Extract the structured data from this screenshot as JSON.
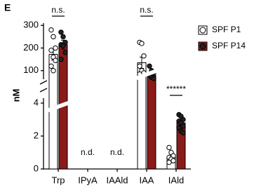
{
  "panel_label": "E",
  "chart_data": {
    "type": "bar",
    "y_label": "nM",
    "categories": [
      "Trp",
      "IPyA",
      "IAAld",
      "IAA",
      "IAld"
    ],
    "y_segments": [
      {
        "ylim": [
          0,
          4.3
        ],
        "yticks": [
          0,
          2,
          4
        ]
      },
      {
        "ylim": [
          62,
          310
        ],
        "yticks": [
          100,
          200,
          300
        ]
      }
    ],
    "series": [
      {
        "name": "SPF P1",
        "color": "#ffffff",
        "values": [
          172,
          null,
          null,
          135,
          0.7
        ],
        "errors": [
          25,
          null,
          null,
          25,
          0.1
        ],
        "points": [
          [
            280,
            250,
            200,
            190,
            160,
            145,
            120,
            100
          ],
          [],
          [],
          [
            225,
            220,
            165,
            120,
            100,
            90,
            85
          ],
          [
            1.3,
            1.0,
            0.8,
            0.7,
            0.6,
            0.5,
            0.4
          ]
        ]
      },
      {
        "name": "SPF P14",
        "color": "#8b1a1a",
        "values": [
          215,
          null,
          null,
          80,
          2.8
        ],
        "errors": [
          20,
          null,
          null,
          10,
          0.15
        ],
        "points": [
          [
            270,
            250,
            225,
            215,
            210,
            180,
            150
          ],
          [],
          [],
          [
            120,
            100,
            90,
            80,
            70,
            65
          ],
          [
            3.3,
            3.2,
            3.0,
            2.9,
            2.8,
            2.6,
            2.5,
            2.3,
            2.2
          ]
        ]
      }
    ],
    "significance": [
      "n.s.",
      null,
      null,
      "n.s.",
      "******"
    ],
    "nd_labels": [
      null,
      "n.d.",
      "n.d.",
      null,
      null
    ]
  }
}
